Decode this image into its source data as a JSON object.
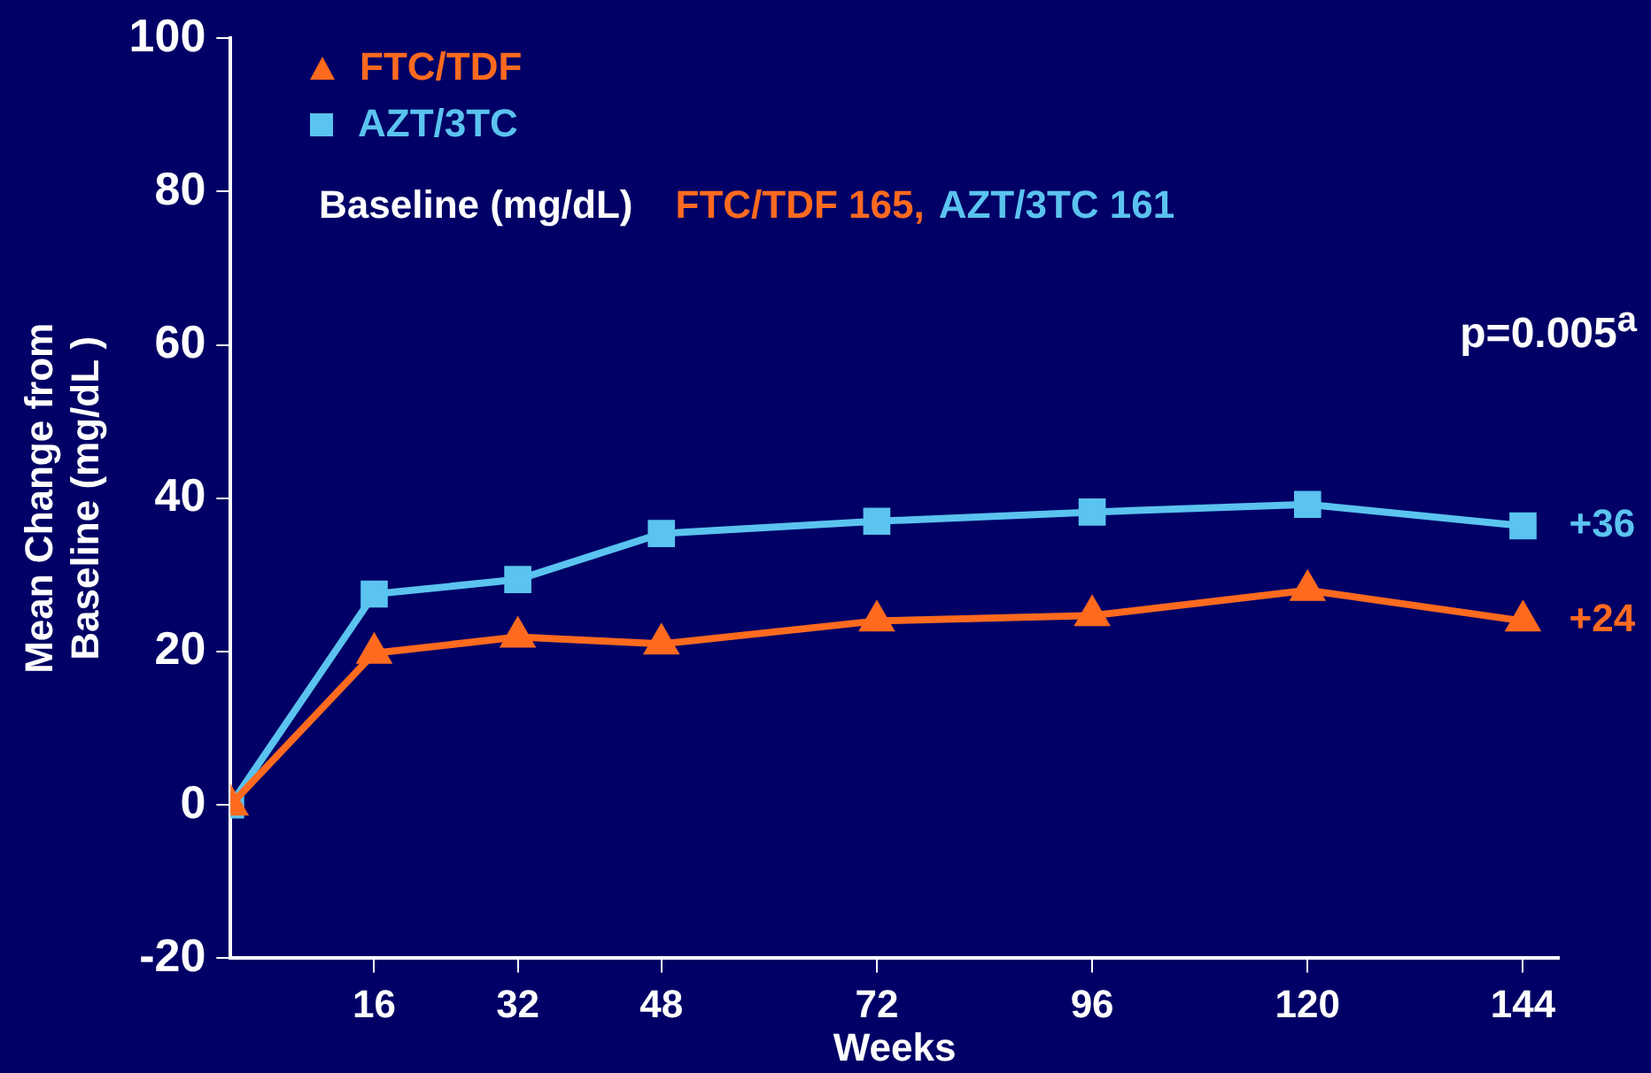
{
  "chart_data": {
    "type": "line",
    "xlabel": "Weeks",
    "ylabel": "Mean Change from Baseline (mg/dL )",
    "x": [
      0,
      16,
      32,
      48,
      72,
      96,
      120,
      144
    ],
    "series": [
      {
        "name": "FTC/TDF",
        "color": "#ff6a1f",
        "marker": "triangle",
        "values": [
          0,
          19.8,
          21.9,
          21,
          24,
          24.7,
          28,
          24
        ]
      },
      {
        "name": "AZT/3TC",
        "color": "#5bc3f0",
        "marker": "square",
        "values": [
          0,
          27.5,
          29.4,
          35.4,
          37,
          38.2,
          39.2,
          36.4
        ]
      }
    ],
    "xlim": [
      0,
      148
    ],
    "xticks": [
      16,
      32,
      48,
      72,
      96,
      120,
      144
    ],
    "ylim": [
      -20,
      100
    ],
    "yticks": [
      -20,
      0,
      20,
      40,
      60,
      80,
      100
    ],
    "grid": false,
    "legend": "top left",
    "line_style": "solid",
    "annotations": [
      "Baseline (mg/dL)",
      "FTC/TDF 165,",
      "AZT/3TC 161",
      "p=0.005$^{a}$",
      {
        "text": "+36",
        "x": 144,
        "y": 36.4
      },
      {
        "text": "+24",
        "x": 144,
        "y": 24
      }
    ]
  }
}
